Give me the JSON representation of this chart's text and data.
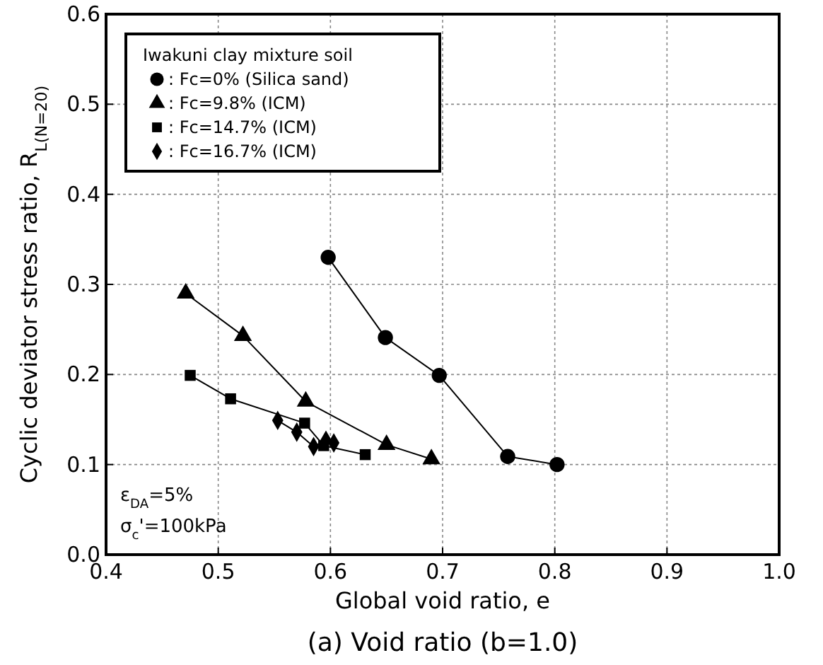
{
  "chart_data": {
    "type": "line",
    "title": "(a) Void ratio (b=1.0)",
    "xlabel": "Global void ratio, e",
    "ylabel": "Cyclic deviator stress ratio, R$_{L(N=20)}$",
    "legend_title": "Iwakuni clay mixture soil",
    "legend": "top left",
    "grid": true,
    "line_style": "solid",
    "xlim": [
      0.4,
      1.0
    ],
    "xticks": [
      0.4,
      0.5,
      0.6,
      0.7,
      0.8,
      0.9,
      {
        "value": 1.0,
        "label": "1.0"
      }
    ],
    "ylim": [
      0,
      0.6
    ],
    "yticks": [
      {
        "value": 0,
        "label": "0.0"
      },
      0.1,
      0.2,
      0.3,
      0.4,
      0.5,
      0.6
    ],
    "annotations": [
      "ε$_{DA}$=5%",
      "σ$_{c}$'=100kPa"
    ],
    "series": [
      {
        "name": ": Fc=0% (Silica sand)",
        "color": "#000000",
        "marker": "circle",
        "x": [
          0.598,
          0.649,
          0.697,
          0.758,
          0.802
        ],
        "values": [
          0.33,
          0.241,
          0.199,
          0.109,
          0.1
        ]
      },
      {
        "name": ": Fc=9.8% (ICM)",
        "color": "#000000",
        "marker": "triangle",
        "x": [
          0.471,
          0.522,
          0.578,
          0.65,
          0.69
        ],
        "values": [
          0.29,
          0.243,
          0.17,
          0.122,
          0.106
        ]
      },
      {
        "name": ": Fc=14.7% (ICM)",
        "color": "#000000",
        "marker": "square",
        "x": [
          0.475,
          0.511,
          0.577,
          0.594,
          0.631
        ],
        "values": [
          0.199,
          0.173,
          0.146,
          0.121,
          0.111
        ]
      },
      {
        "name": ": Fc=16.7% (ICM)",
        "color": "#000000",
        "marker": "diamond",
        "x": [
          0.553,
          0.57,
          0.585,
          0.596,
          0.603
        ],
        "values": [
          0.149,
          0.136,
          0.12,
          0.127,
          0.124
        ]
      }
    ]
  }
}
